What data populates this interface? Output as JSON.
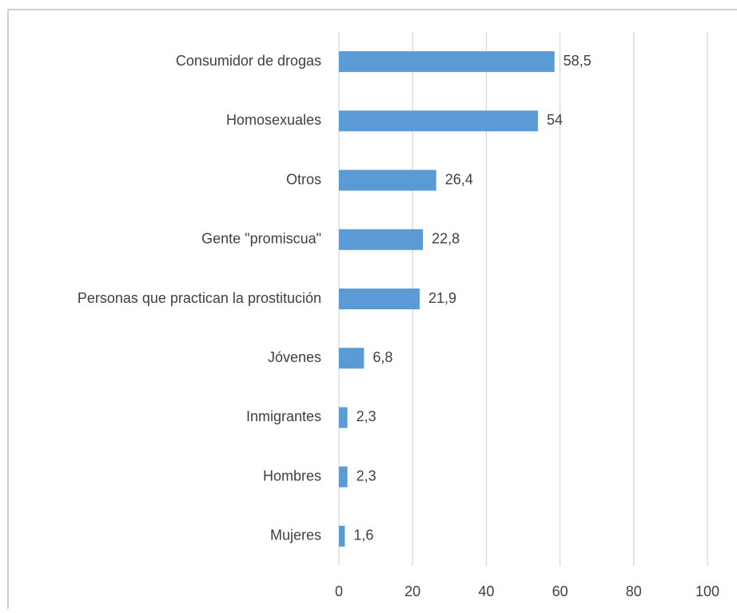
{
  "chart_data": {
    "type": "bar",
    "orientation": "horizontal",
    "categories": [
      "Consumidor de drogas",
      "Homosexuales",
      "Otros",
      "Gente \"promiscua\"",
      "Personas que practican la prostitución",
      "Jóvenes",
      "Inmigrantes",
      "Hombres",
      "Mujeres"
    ],
    "values": [
      58.5,
      54,
      26.4,
      22.8,
      21.9,
      6.8,
      2.3,
      2.3,
      1.6
    ],
    "value_labels": [
      "58,5",
      "54",
      "26,4",
      "22,8",
      "21,9",
      "6,8",
      "2,3",
      "2,3",
      "1,6"
    ],
    "color": "#5b9bd5",
    "xlim": [
      0,
      100
    ],
    "xticks": [
      0,
      20,
      40,
      60,
      80,
      100
    ],
    "grid": true
  }
}
